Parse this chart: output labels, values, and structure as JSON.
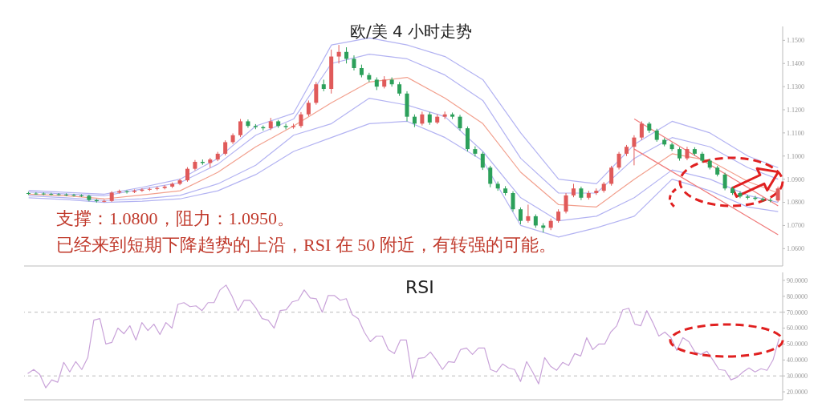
{
  "chart_data": [
    {
      "type": "candlestick",
      "title": "欧/美 4 小时走势",
      "annotations": [
        "支撑：1.0800，阻力：1.0950。",
        "已经来到短期下降趋势的上沿，RSI 在 50 附近，有转强的可能。"
      ],
      "categories": [
        null,
        null,
        null,
        null,
        null,
        null,
        null,
        null,
        null,
        null,
        null,
        null,
        null,
        null,
        null,
        null,
        null,
        null,
        null,
        null,
        null,
        null,
        null,
        null,
        null,
        null,
        null,
        null,
        null,
        null,
        null,
        null,
        null,
        null,
        null,
        null,
        null,
        null,
        null,
        null,
        null,
        null,
        null,
        null,
        null,
        null,
        null,
        null,
        null,
        null,
        null,
        null,
        null,
        null,
        null,
        null,
        null,
        null,
        null,
        null,
        null,
        null,
        null,
        null,
        null,
        null,
        null,
        null,
        null,
        null,
        null,
        null,
        null,
        null,
        null,
        null,
        null,
        null,
        null,
        null,
        null,
        null,
        null,
        null,
        null,
        null,
        null,
        null,
        null,
        null,
        null,
        null,
        null,
        null,
        null,
        null,
        null,
        null,
        null,
        null
      ],
      "ohlc": [
        [
          1.084,
          1.0846,
          1.0832,
          1.0838
        ],
        [
          1.0838,
          1.0844,
          1.0833,
          1.0838
        ],
        [
          1.0838,
          1.0843,
          1.0831,
          1.0836
        ],
        [
          1.0836,
          1.0841,
          1.083,
          1.0835
        ],
        [
          1.0835,
          1.084,
          1.0829,
          1.0834
        ],
        [
          1.0834,
          1.0839,
          1.0827,
          1.0832
        ],
        [
          1.0832,
          1.0837,
          1.0825,
          1.083
        ],
        [
          1.083,
          1.0835,
          1.0823,
          1.0828
        ],
        [
          1.0828,
          1.0833,
          1.0804,
          1.081
        ],
        [
          1.081,
          1.0815,
          1.0799,
          1.0805
        ],
        [
          1.0805,
          1.0812,
          1.08,
          1.0806
        ],
        [
          1.0806,
          1.0848,
          1.0802,
          1.0842
        ],
        [
          1.0842,
          1.0855,
          1.0838,
          1.0848
        ],
        [
          1.0848,
          1.0852,
          1.0838,
          1.0845
        ],
        [
          1.0845,
          1.0856,
          1.084,
          1.085
        ],
        [
          1.085,
          1.0861,
          1.0845,
          1.0855
        ],
        [
          1.0855,
          1.0864,
          1.0849,
          1.0858
        ],
        [
          1.0858,
          1.0868,
          1.0852,
          1.0862
        ],
        [
          1.0862,
          1.0874,
          1.0856,
          1.0868
        ],
        [
          1.0868,
          1.0886,
          1.0862,
          1.088
        ],
        [
          1.088,
          1.0902,
          1.0874,
          1.0895
        ],
        [
          1.0895,
          1.0952,
          1.0889,
          1.0945
        ],
        [
          1.0945,
          1.0983,
          1.0938,
          1.0975
        ],
        [
          1.0975,
          1.0985,
          1.0962,
          1.097
        ],
        [
          1.097,
          1.0992,
          1.095,
          1.0985
        ],
        [
          1.0985,
          1.1018,
          1.0978,
          1.101
        ],
        [
          1.101,
          1.1068,
          1.1003,
          1.106
        ],
        [
          1.106,
          1.1098,
          1.1052,
          1.109
        ],
        [
          1.109,
          1.116,
          1.1082,
          1.115
        ],
        [
          1.115,
          1.1158,
          1.1122,
          1.113
        ],
        [
          1.113,
          1.1138,
          1.1116,
          1.1125
        ],
        [
          1.1125,
          1.1132,
          1.111,
          1.112
        ],
        [
          1.112,
          1.1165,
          1.1112,
          1.115
        ],
        [
          1.115,
          1.1156,
          1.1122,
          1.113
        ],
        [
          1.113,
          1.114,
          1.1115,
          1.1125
        ],
        [
          1.1125,
          1.114,
          1.1118,
          1.113
        ],
        [
          1.113,
          1.119,
          1.1122,
          1.118
        ],
        [
          1.118,
          1.124,
          1.1172,
          1.123
        ],
        [
          1.123,
          1.132,
          1.1222,
          1.131
        ],
        [
          1.131,
          1.133,
          1.128,
          1.129
        ],
        [
          1.129,
          1.146,
          1.127,
          1.143
        ],
        [
          1.143,
          1.148,
          1.14,
          1.145
        ],
        [
          1.145,
          1.147,
          1.14,
          1.142
        ],
        [
          1.142,
          1.1435,
          1.137,
          1.138
        ],
        [
          1.138,
          1.1395,
          1.134,
          1.135
        ],
        [
          1.135,
          1.136,
          1.132,
          1.133
        ],
        [
          1.133,
          1.134,
          1.1285,
          1.13
        ],
        [
          1.13,
          1.1345,
          1.1292,
          1.133
        ],
        [
          1.133,
          1.134,
          1.13,
          1.131
        ],
        [
          1.131,
          1.132,
          1.126,
          1.127
        ],
        [
          1.127,
          1.128,
          1.115,
          1.117
        ],
        [
          1.117,
          1.118,
          1.1125,
          1.114
        ],
        [
          1.114,
          1.1192,
          1.1132,
          1.118
        ],
        [
          1.118,
          1.119,
          1.1135,
          1.1145
        ],
        [
          1.1145,
          1.118,
          1.1138,
          1.117
        ],
        [
          1.117,
          1.1192,
          1.116,
          1.118
        ],
        [
          1.118,
          1.1188,
          1.116,
          1.117
        ],
        [
          1.117,
          1.1178,
          1.111,
          1.112
        ],
        [
          1.112,
          1.1128,
          1.102,
          1.103
        ],
        [
          1.103,
          1.1042,
          1.0998,
          1.101
        ],
        [
          1.101,
          1.1018,
          1.094,
          1.095
        ],
        [
          1.095,
          1.0958,
          1.0865,
          1.088
        ],
        [
          1.088,
          1.089,
          1.085,
          1.086
        ],
        [
          1.086,
          1.087,
          1.083,
          1.084
        ],
        [
          1.084,
          1.0848,
          1.076,
          1.077
        ],
        [
          1.077,
          1.0778,
          1.0705,
          1.072
        ],
        [
          1.072,
          1.079,
          1.0712,
          1.074
        ],
        [
          1.074,
          1.0748,
          1.069,
          1.07
        ],
        [
          1.07,
          1.071,
          1.067,
          1.069
        ],
        [
          1.069,
          1.073,
          1.068,
          1.072
        ],
        [
          1.072,
          1.077,
          1.0712,
          1.076
        ],
        [
          1.076,
          1.084,
          1.0752,
          1.083
        ],
        [
          1.083,
          1.088,
          1.0822,
          1.086
        ],
        [
          1.086,
          1.0868,
          1.081,
          1.082
        ],
        [
          1.082,
          1.085,
          1.0812,
          1.084
        ],
        [
          1.084,
          1.086,
          1.0832,
          1.085
        ],
        [
          1.085,
          1.0888,
          1.0842,
          1.088
        ],
        [
          1.088,
          1.0958,
          1.0872,
          1.095
        ],
        [
          1.095,
          1.1018,
          1.0942,
          1.101
        ],
        [
          1.101,
          1.1048,
          1.1,
          1.104
        ],
        [
          1.104,
          1.109,
          1.096,
          1.108
        ],
        [
          1.108,
          1.115,
          1.107,
          1.114
        ],
        [
          1.114,
          1.1148,
          1.11,
          1.111
        ],
        [
          1.111,
          1.1118,
          1.1062,
          1.107
        ],
        [
          1.107,
          1.1078,
          1.1042,
          1.105
        ],
        [
          1.105,
          1.1058,
          1.1022,
          1.103
        ],
        [
          1.103,
          1.1038,
          1.098,
          1.099
        ],
        [
          1.099,
          1.104,
          1.0982,
          1.103
        ],
        [
          1.103,
          1.1038,
          1.1002,
          1.101
        ],
        [
          1.101,
          1.1018,
          1.0972,
          1.098
        ],
        [
          1.098,
          1.0988,
          1.0942,
          1.095
        ],
        [
          1.095,
          1.0958,
          1.0912,
          1.092
        ],
        [
          1.092,
          1.0928,
          1.0852,
          1.086
        ],
        [
          1.086,
          1.0868,
          1.0832,
          1.084
        ],
        [
          1.084,
          1.0848,
          1.0818,
          1.0825
        ],
        [
          1.0825,
          1.0832,
          1.0812,
          1.082
        ],
        [
          1.082,
          1.0828,
          1.0808,
          1.0815
        ],
        [
          1.0815,
          1.0822,
          1.0803,
          1.081
        ],
        [
          1.081,
          1.0818,
          1.08,
          1.0808
        ],
        [
          1.0808,
          1.0868,
          1.0802,
          1.086
        ]
      ],
      "colors": [
        "#2ca05a",
        "#2ca05a",
        "#2ca05a",
        "#2ca05a",
        "#2ca05a",
        "#2ca05a",
        "#2ca05a",
        "#2ca05a",
        "#2ca05a",
        "#2ca05a",
        "#e05a5a",
        "#e05a5a",
        "#e05a5a",
        "#2ca05a",
        "#e05a5a",
        "#e05a5a",
        "#e05a5a",
        "#e05a5a",
        "#e05a5a",
        "#e05a5a",
        "#e05a5a",
        "#e05a5a",
        "#e05a5a",
        "#2ca05a",
        "#e05a5a",
        "#e05a5a",
        "#e05a5a",
        "#e05a5a",
        "#e05a5a",
        "#2ca05a",
        "#2ca05a",
        "#2ca05a",
        "#e05a5a",
        "#2ca05a",
        "#2ca05a",
        "#e05a5a",
        "#e05a5a",
        "#e05a5a",
        "#e05a5a",
        "#2ca05a",
        "#e05a5a",
        "#e05a5a",
        "#2ca05a",
        "#2ca05a",
        "#2ca05a",
        "#2ca05a",
        "#2ca05a",
        "#e05a5a",
        "#2ca05a",
        "#2ca05a",
        "#2ca05a",
        "#2ca05a",
        "#e05a5a",
        "#2ca05a",
        "#e05a5a",
        "#e05a5a",
        "#2ca05a",
        "#2ca05a",
        "#2ca05a",
        "#2ca05a",
        "#2ca05a",
        "#2ca05a",
        "#2ca05a",
        "#2ca05a",
        "#2ca05a",
        "#2ca05a",
        "#e05a5a",
        "#2ca05a",
        "#2ca05a",
        "#e05a5a",
        "#e05a5a",
        "#e05a5a",
        "#e05a5a",
        "#2ca05a",
        "#e05a5a",
        "#e05a5a",
        "#e05a5a",
        "#e05a5a",
        "#e05a5a",
        "#e05a5a",
        "#e05a5a",
        "#e05a5a",
        "#2ca05a",
        "#2ca05a",
        "#2ca05a",
        "#2ca05a",
        "#2ca05a",
        "#e05a5a",
        "#2ca05a",
        "#2ca05a",
        "#2ca05a",
        "#2ca05a",
        "#2ca05a",
        "#2ca05a",
        "#2ca05a",
        "#2ca05a",
        "#2ca05a",
        "#2ca05a",
        "#2ca05a",
        "#e05a5a"
      ],
      "series": [
        {
          "type": "line",
          "color": "#b3b3f2",
          "values": [
            1.0852,
            null,
            null,
            null,
            null,
            1.0843,
            null,
            null,
            null,
            null,
            1.0835,
            null,
            null,
            null,
            null,
            1.0865,
            null,
            null,
            null,
            null,
            1.09,
            null,
            null,
            null,
            null,
            1.099,
            null,
            null,
            null,
            null,
            1.113,
            null,
            null,
            null,
            null,
            1.1185,
            null,
            null,
            null,
            null,
            1.148,
            null,
            null,
            null,
            null,
            1.151,
            null,
            null,
            null,
            null,
            1.148,
            null,
            null,
            null,
            null,
            1.143,
            null,
            null,
            null,
            null,
            1.133,
            null,
            null,
            null,
            null,
            1.11,
            null,
            null,
            null,
            null,
            1.09,
            null,
            null,
            null,
            null,
            1.088,
            null,
            null,
            null,
            null,
            1.105,
            null,
            null,
            null,
            null,
            1.115,
            null,
            null,
            null,
            null,
            1.11,
            null,
            null,
            null,
            null,
            1.1,
            null,
            null,
            null,
            1.095
          ]
        },
        {
          "type": "line",
          "color": "#b3b3f2",
          "values": [
            1.0845,
            null,
            null,
            null,
            null,
            1.0836,
            null,
            null,
            null,
            null,
            1.0828,
            null,
            null,
            null,
            null,
            1.0858,
            null,
            null,
            null,
            null,
            1.0885,
            null,
            null,
            null,
            null,
            1.0965,
            null,
            null,
            null,
            null,
            1.109,
            null,
            null,
            null,
            null,
            1.116,
            null,
            null,
            null,
            null,
            1.14,
            null,
            null,
            null,
            null,
            1.144,
            null,
            null,
            null,
            null,
            1.142,
            null,
            null,
            null,
            null,
            1.135,
            null,
            null,
            null,
            null,
            1.124,
            null,
            null,
            null,
            null,
            1.099,
            null,
            null,
            null,
            null,
            1.084,
            null,
            null,
            null,
            null,
            1.084,
            null,
            null,
            null,
            null,
            1.099,
            null,
            null,
            null,
            null,
            1.108,
            null,
            null,
            null,
            null,
            1.104,
            null,
            null,
            null,
            null,
            1.095,
            null,
            null,
            null,
            1.09
          ]
        },
        {
          "type": "line",
          "color": "#f2a08e",
          "values": [
            1.0835,
            null,
            null,
            null,
            null,
            1.0828,
            null,
            null,
            null,
            null,
            1.0815,
            null,
            null,
            null,
            null,
            1.0832,
            null,
            null,
            null,
            null,
            1.085,
            null,
            null,
            null,
            null,
            1.093,
            null,
            null,
            null,
            null,
            1.104,
            null,
            null,
            null,
            null,
            1.113,
            null,
            null,
            null,
            null,
            1.123,
            null,
            null,
            null,
            null,
            1.132,
            null,
            null,
            null,
            null,
            1.134,
            null,
            null,
            null,
            null,
            1.125,
            null,
            null,
            null,
            null,
            1.114,
            null,
            null,
            null,
            null,
            1.093,
            null,
            null,
            null,
            null,
            1.079,
            null,
            null,
            null,
            null,
            1.078,
            null,
            null,
            null,
            null,
            1.09,
            null,
            null,
            null,
            null,
            1.101,
            null,
            null,
            null,
            null,
            1.098,
            null,
            null,
            null,
            null,
            1.089,
            null,
            null,
            null,
            1.084
          ]
        },
        {
          "type": "line",
          "color": "#b3b3f2",
          "values": [
            1.0828,
            null,
            null,
            null,
            null,
            1.082,
            null,
            null,
            null,
            null,
            1.0808,
            null,
            null,
            null,
            null,
            1.0815,
            null,
            null,
            null,
            null,
            1.083,
            null,
            null,
            null,
            null,
            1.088,
            null,
            null,
            null,
            null,
            1.096,
            null,
            null,
            null,
            null,
            1.109,
            null,
            null,
            null,
            null,
            1.114,
            null,
            null,
            null,
            null,
            1.125,
            null,
            null,
            null,
            null,
            1.122,
            null,
            null,
            null,
            null,
            1.117,
            null,
            null,
            null,
            null,
            1.102,
            null,
            null,
            null,
            null,
            1.082,
            null,
            null,
            null,
            null,
            1.072,
            null,
            null,
            null,
            null,
            1.074,
            null,
            null,
            null,
            null,
            1.082,
            null,
            null,
            null,
            null,
            1.094,
            null,
            null,
            null,
            null,
            1.09,
            null,
            null,
            null,
            null,
            1.083,
            null,
            null,
            null,
            1.08
          ]
        },
        {
          "type": "line",
          "color": "#b3b3f2",
          "values": [
            1.082,
            null,
            null,
            null,
            null,
            1.0812,
            null,
            null,
            null,
            null,
            1.08,
            null,
            null,
            null,
            null,
            1.0805,
            null,
            null,
            null,
            null,
            1.0815,
            null,
            null,
            null,
            null,
            1.085,
            null,
            null,
            null,
            null,
            1.092,
            null,
            null,
            null,
            null,
            1.102,
            null,
            null,
            null,
            null,
            1.108,
            null,
            null,
            null,
            null,
            1.114,
            null,
            null,
            null,
            null,
            1.115,
            null,
            null,
            null,
            null,
            1.108,
            null,
            null,
            null,
            null,
            1.098,
            null,
            null,
            null,
            null,
            1.07,
            null,
            null,
            null,
            null,
            1.065,
            null,
            null,
            null,
            null,
            1.069,
            null,
            null,
            null,
            null,
            1.074,
            null,
            null,
            null,
            null,
            1.09,
            null,
            null,
            null,
            null,
            1.085,
            null,
            null,
            null,
            null,
            1.078,
            null,
            null,
            null,
            1.076
          ]
        },
        {
          "type": "line",
          "color": "#f07a7a",
          "values": [
            null,
            null,
            null,
            null,
            null,
            null,
            null,
            null,
            null,
            null,
            null,
            null,
            null,
            null,
            null,
            null,
            null,
            null,
            null,
            null,
            null,
            null,
            null,
            null,
            null,
            null,
            null,
            null,
            null,
            null,
            null,
            null,
            null,
            null,
            null,
            null,
            null,
            null,
            null,
            null,
            null,
            null,
            null,
            null,
            null,
            null,
            null,
            null,
            null,
            null,
            null,
            null,
            null,
            null,
            null,
            null,
            null,
            null,
            null,
            null,
            null,
            null,
            null,
            null,
            null,
            null,
            null,
            null,
            null,
            null,
            null,
            null,
            null,
            null,
            null,
            null,
            null,
            null,
            null,
            null,
            1.116,
            null,
            null,
            null,
            null,
            null,
            null,
            null,
            null,
            null,
            null,
            null,
            null,
            null,
            null,
            null,
            null,
            null,
            null,
            1.0785
          ]
        },
        {
          "type": "line",
          "color": "#f07a7a",
          "values": [
            null,
            null,
            null,
            null,
            null,
            null,
            null,
            null,
            null,
            null,
            null,
            null,
            null,
            null,
            null,
            null,
            null,
            null,
            null,
            null,
            null,
            null,
            null,
            null,
            null,
            null,
            null,
            null,
            null,
            null,
            null,
            null,
            null,
            null,
            null,
            null,
            null,
            null,
            null,
            null,
            null,
            null,
            null,
            null,
            null,
            null,
            null,
            null,
            null,
            null,
            null,
            null,
            null,
            null,
            null,
            null,
            null,
            null,
            null,
            null,
            null,
            null,
            null,
            null,
            null,
            null,
            null,
            null,
            null,
            null,
            null,
            null,
            null,
            null,
            null,
            null,
            null,
            null,
            null,
            null,
            1.103,
            null,
            null,
            null,
            null,
            null,
            null,
            null,
            null,
            null,
            null,
            null,
            null,
            null,
            null,
            null,
            null,
            null,
            null,
            1.066
          ]
        }
      ],
      "marker": "none",
      "ylim": [
        1.0525,
        1.156
      ],
      "yticks": [
        {
          "value": 1.06,
          "label": "1.0600"
        },
        {
          "value": 1.07,
          "label": "1.0700"
        },
        {
          "value": 1.08,
          "label": "1.0800"
        },
        {
          "value": 1.09,
          "label": "1.0900"
        },
        {
          "value": 1.1,
          "label": "1.1000"
        },
        {
          "value": 1.11,
          "label": "1.1100"
        },
        {
          "value": 1.12,
          "label": "1.1200"
        },
        {
          "value": 1.13,
          "label": "1.1300"
        },
        {
          "value": 1.14,
          "label": "1.1400"
        },
        {
          "value": 1.15,
          "label": "1.1500"
        }
      ],
      "tick_labels": "y"
    },
    {
      "type": "line",
      "title": "RSI",
      "color": "#c9a3d9",
      "marker": "none",
      "categories": [
        null,
        null,
        null,
        null,
        null,
        null,
        null,
        null,
        null,
        null,
        null,
        null,
        null,
        null,
        null,
        null,
        null,
        null,
        null,
        null,
        null,
        null,
        null,
        null,
        null,
        null,
        null,
        null,
        null,
        null,
        null,
        null,
        null,
        null,
        null,
        null,
        null,
        null,
        null,
        null,
        null,
        null,
        null,
        null,
        null,
        null,
        null,
        null,
        null,
        null,
        null,
        null,
        null,
        null,
        null,
        null,
        null,
        null,
        null,
        null,
        null,
        null,
        null,
        null,
        null,
        null,
        null,
        null,
        null,
        null,
        null,
        null,
        null,
        null,
        null,
        null,
        null,
        null,
        null,
        null,
        null,
        null,
        null,
        null,
        null,
        null,
        null,
        null,
        null,
        null,
        null,
        null,
        null,
        null,
        null,
        null,
        null,
        null,
        null,
        null,
        null,
        null,
        null,
        null,
        null,
        null,
        null,
        null,
        null,
        null,
        null,
        null,
        null,
        null,
        null,
        null,
        null,
        null,
        null,
        null,
        null,
        null,
        null,
        null,
        null,
        null
      ],
      "values": [
        31.5,
        34,
        31,
        22.5,
        27.5,
        26,
        38.5,
        32.5,
        39,
        34,
        41.5,
        65,
        66,
        50,
        51,
        60,
        56.5,
        61.5,
        52.5,
        63.5,
        58.5,
        62.5,
        56,
        63.5,
        60,
        75,
        76,
        73.5,
        74,
        71,
        76,
        76,
        84,
        87,
        80,
        71,
        77.5,
        77.5,
        72.5,
        66,
        65,
        60,
        71,
        71.5,
        76.5,
        77.5,
        84,
        79,
        78.5,
        70,
        80.5,
        80.5,
        77.5,
        78.5,
        68.5,
        66,
        57.5,
        51.5,
        55,
        55,
        46.5,
        44,
        52.5,
        52.5,
        28.5,
        41,
        41.5,
        45,
        40,
        34,
        39,
        38.5,
        46.5,
        47.5,
        43.5,
        47.5,
        47.5,
        34,
        32.5,
        37.5,
        35,
        34,
        26.5,
        39,
        32.5,
        25,
        41.5,
        36,
        33.5,
        38.5,
        36.5,
        44,
        42.5,
        54,
        46.5,
        50,
        50,
        57.5,
        61.5,
        71.5,
        72.5,
        62.5,
        61.5,
        71,
        63.5,
        55,
        57.5,
        54,
        46,
        54,
        51.5,
        45,
        43.5,
        45.5,
        40,
        34,
        33.5,
        27.5,
        29,
        32.5,
        35,
        32.5,
        34.5,
        33.5,
        40,
        53.5
      ],
      "ref_lines": [
        {
          "axis": "y",
          "value": 70,
          "color": "#bbbbbb",
          "line_style": "dashed"
        },
        {
          "axis": "y",
          "value": 30,
          "color": "#bbbbbb",
          "line_style": "dashed"
        }
      ],
      "ylim": [
        15,
        95
      ],
      "yticks": [
        {
          "value": 20,
          "label": "20.0000"
        },
        {
          "value": 30,
          "label": "30.0000"
        },
        {
          "value": 40,
          "label": "40.0000"
        },
        {
          "value": 50,
          "label": "50.0000"
        },
        {
          "value": 60,
          "label": "60.0000"
        },
        {
          "value": 70,
          "label": "70.0000"
        },
        {
          "value": 80,
          "label": "80.0000"
        },
        {
          "value": 90,
          "label": "90.0000"
        }
      ],
      "tick_labels": "y"
    }
  ]
}
